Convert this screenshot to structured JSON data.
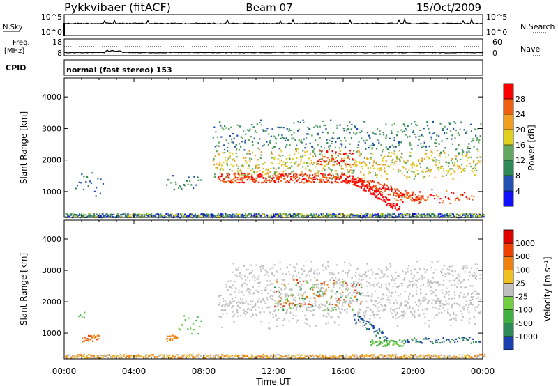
{
  "header": {
    "title": "Pykkvibaer (fitACF)",
    "beam": "Beam 07",
    "date": "15/Oct/2009"
  },
  "top_panels": {
    "nsky": {
      "label": "N.Sky",
      "left_ticks": [
        "10^5",
        "10^0"
      ],
      "right_ticks": [
        "10^5",
        "10^0"
      ],
      "right_label": "N.Search"
    },
    "freq": {
      "label_line1": "Freq.",
      "label_line2": "[MHz]",
      "left_ticks": [
        "18",
        "8"
      ],
      "right_ticks": [
        "60",
        "0"
      ],
      "right_label": "Nave"
    },
    "cpid": {
      "label": "CPID",
      "text": "normal (fast stereo) 153"
    }
  },
  "chart_data": [
    {
      "type": "heatmap",
      "panel": "power",
      "ylabel": "Slant Range [km]",
      "y_ticks": [
        1000,
        2000,
        3000,
        4000
      ],
      "ylim": [
        180,
        4600
      ],
      "x_ticks": [
        "00:00",
        "04:00",
        "08:00",
        "12:00",
        "16:00",
        "20:00",
        "00:00"
      ],
      "xlim_hours": [
        0,
        24
      ],
      "colorbar": {
        "label": "Power [dB]",
        "ticks": [
          "4",
          "8",
          "12",
          "16",
          "20",
          "24",
          "28"
        ],
        "colors": [
          "#1010ff",
          "#2050b0",
          "#2e8b57",
          "#60a860",
          "#e0d020",
          "#f0a020",
          "#f06010",
          "#ff0000"
        ]
      }
    },
    {
      "type": "heatmap",
      "panel": "velocity",
      "ylabel": "Slant Range [km]",
      "y_ticks": [
        1000,
        2000,
        3000,
        4000
      ],
      "ylim": [
        180,
        4600
      ],
      "x_ticks": [
        "00:00",
        "04:00",
        "08:00",
        "12:00",
        "16:00",
        "20:00",
        "00:00"
      ],
      "xlabel": "Time UT",
      "xlim_hours": [
        0,
        24
      ],
      "colorbar": {
        "label": "Velocity [m s⁻¹]",
        "ticks": [
          "1000",
          "500",
          "100",
          "25",
          "-25",
          "-100",
          "-500",
          "-1000"
        ],
        "colors": [
          "#1a3fb0",
          "#2e8b57",
          "#40b040",
          "#70d040",
          "#c0c0c0",
          "#f0c020",
          "#f08010",
          "#f04000",
          "#e00000"
        ]
      }
    }
  ]
}
